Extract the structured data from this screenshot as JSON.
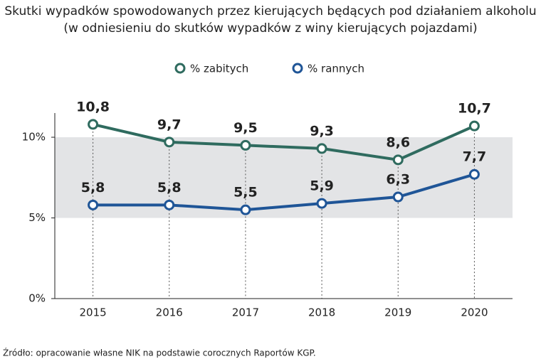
{
  "chart_data": {
    "type": "line",
    "title": "Skutki wypadków spowodowanych przez kierujących będących pod działaniem alkoholu",
    "subtitle": "(w odniesieniu do skutków wypadków z winy kierujących pojazdami)",
    "categories": [
      "2015",
      "2016",
      "2017",
      "2018",
      "2019",
      "2020"
    ],
    "series": [
      {
        "name": "% zabitych",
        "color": "#2f6b5f",
        "values": [
          10.8,
          9.7,
          9.5,
          9.3,
          8.6,
          10.7
        ],
        "value_labels": [
          "10,8",
          "9,7",
          "9,5",
          "9,3",
          "8,6",
          "10,7"
        ]
      },
      {
        "name": "% rannych",
        "color": "#1f5597",
        "values": [
          5.8,
          5.8,
          5.5,
          5.9,
          6.3,
          7.7
        ],
        "value_labels": [
          "5,8",
          "5,8",
          "5,5",
          "5,9",
          "6,3",
          "7,7"
        ]
      }
    ],
    "ylim": [
      0,
      11.5
    ],
    "yticks": [
      {
        "value": 0,
        "label": "0%"
      },
      {
        "value": 5,
        "label": "5%"
      },
      {
        "value": 10,
        "label": "10%"
      }
    ],
    "source": "Źródło: opracowanie własne NIK na podstawie corocznych Raportów KGP."
  }
}
